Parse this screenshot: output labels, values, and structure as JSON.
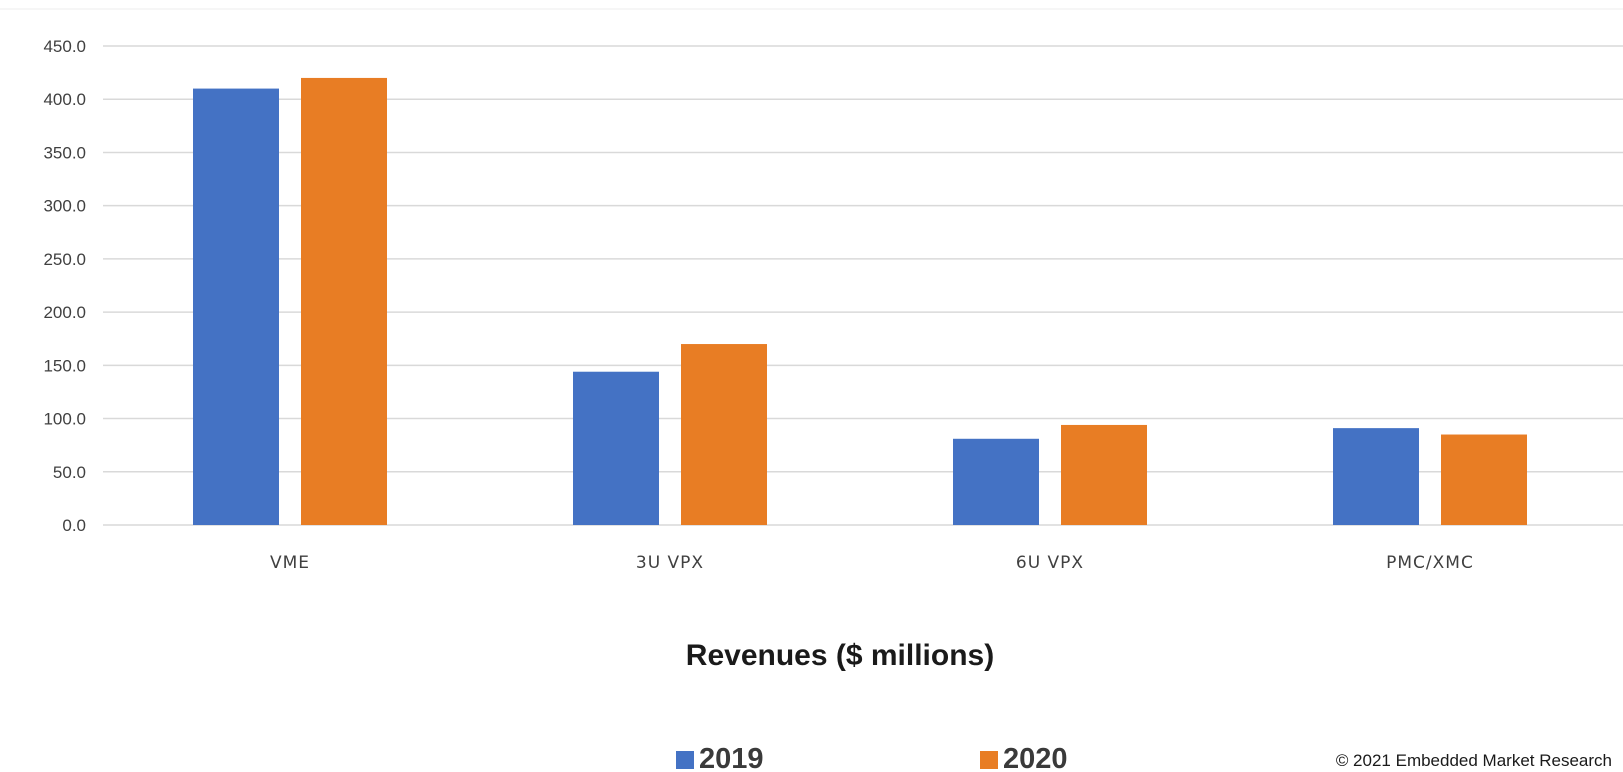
{
  "chart_data": {
    "type": "bar",
    "categories": [
      "VME",
      "3U VPX",
      "6U VPX",
      "PMC/XMC"
    ],
    "series": [
      {
        "name": "2019",
        "color": "#4472C4",
        "values": [
          410.0,
          144.0,
          81.0,
          91.0
        ]
      },
      {
        "name": "2020",
        "color": "#E87D24",
        "values": [
          420.0,
          170.0,
          94.0,
          85.0
        ]
      }
    ],
    "title": "",
    "xlabel": "Revenues ($ millions)",
    "ylabel": "",
    "ylim": [
      0,
      450
    ],
    "yticks": [
      "0.0",
      "50.0",
      "100.0",
      "150.0",
      "200.0",
      "250.0",
      "300.0",
      "350.0",
      "400.0",
      "450.0"
    ],
    "grid": true,
    "legend_position": "bottom"
  },
  "credit": "© 2021 Embedded Market Research",
  "colors": {
    "grid": "#d9d9d9"
  }
}
